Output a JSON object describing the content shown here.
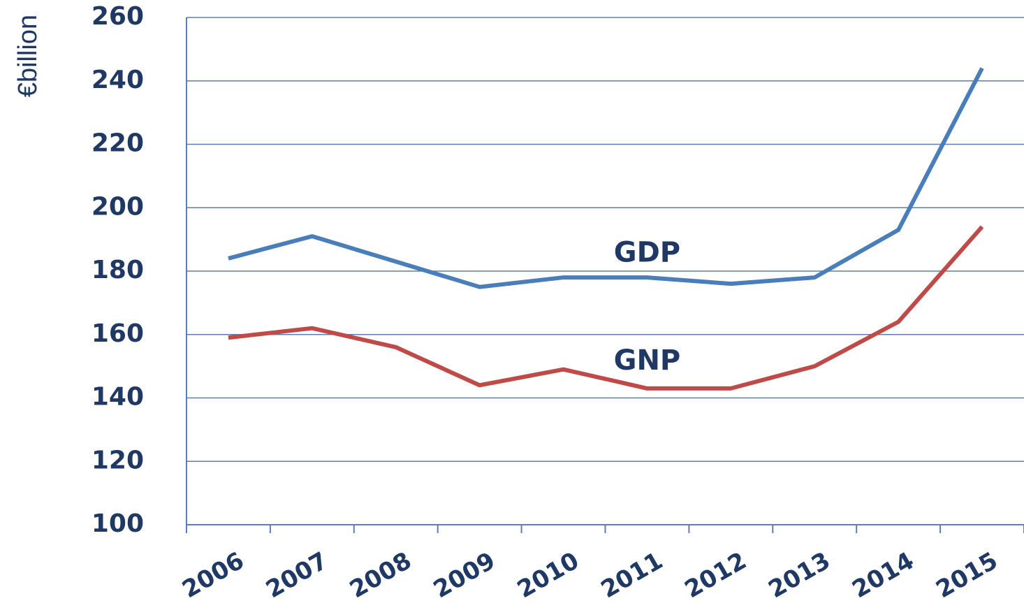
{
  "chart_data": {
    "type": "line",
    "y_label": "€billion",
    "categories": [
      "2006",
      "2007",
      "2008",
      "2009",
      "2010",
      "2011",
      "2012",
      "2013",
      "2014",
      "2015"
    ],
    "series": [
      {
        "name": "GDP",
        "color": "#4a7ebb",
        "values": [
          184,
          191,
          183,
          175,
          178,
          178,
          176,
          178,
          193,
          244
        ]
      },
      {
        "name": "GNP",
        "color": "#be4b48",
        "values": [
          159,
          162,
          156,
          144,
          149,
          143,
          143,
          150,
          164,
          194
        ]
      }
    ],
    "ylim": [
      100,
      260
    ],
    "yticks": [
      100,
      120,
      140,
      160,
      180,
      200,
      220,
      240,
      260
    ],
    "grid": true
  }
}
